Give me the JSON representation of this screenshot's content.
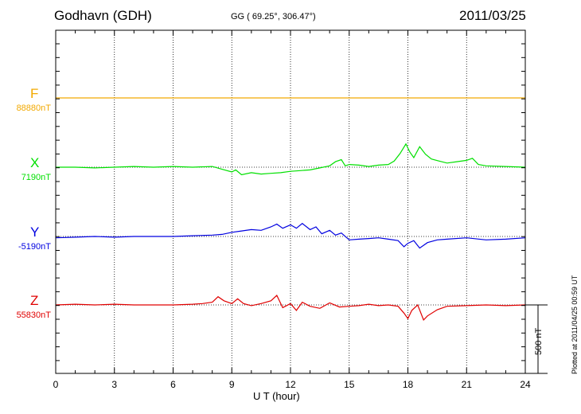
{
  "header": {
    "station": "Godhavn (GDH)",
    "coords": "GG ( 69.25°, 306.47°)",
    "date": "2011/03/25"
  },
  "plotted_note": "Plotted at 2011/04/25 00:59 UT",
  "scale_label": "500 nT",
  "chart_data": {
    "type": "line",
    "xlabel": "U T (hour)",
    "xlim": [
      0,
      24
    ],
    "xticks": [
      0,
      3,
      6,
      9,
      12,
      15,
      18,
      21,
      24
    ],
    "xtick_labels": [
      "0",
      "3",
      "6",
      "9",
      "12",
      "15",
      "18",
      "21",
      "24"
    ],
    "grid": true,
    "scale_bar_nT": 500,
    "series": [
      {
        "name": "F",
        "baseline_label": "88880nT",
        "color": "#f2a900",
        "x": [
          0,
          3,
          6,
          9,
          12,
          15,
          18,
          21,
          24
        ],
        "y": [
          0,
          0,
          0,
          0,
          0,
          0,
          0,
          0,
          0
        ]
      },
      {
        "name": "X",
        "baseline_label": "7190nT",
        "color": "#00e000",
        "x": [
          0,
          1,
          2,
          3,
          4,
          5,
          6,
          7,
          8,
          8.5,
          9,
          9.2,
          9.5,
          10,
          10.5,
          11,
          11.5,
          12,
          12.5,
          13,
          13.5,
          14,
          14.3,
          14.6,
          14.8,
          15,
          15.5,
          16,
          16.5,
          17,
          17.3,
          17.6,
          17.9,
          18.1,
          18.3,
          18.6,
          18.9,
          19.2,
          19.6,
          20,
          20.5,
          21,
          21.3,
          21.6,
          22,
          23,
          24
        ],
        "y": [
          0,
          0,
          -5,
          0,
          5,
          0,
          5,
          0,
          5,
          -15,
          -35,
          -20,
          -55,
          -40,
          -50,
          -45,
          -40,
          -30,
          -25,
          -20,
          -5,
          10,
          40,
          55,
          10,
          20,
          15,
          5,
          15,
          20,
          45,
          100,
          170,
          110,
          70,
          150,
          95,
          60,
          45,
          30,
          40,
          50,
          65,
          20,
          10,
          5,
          0
        ]
      },
      {
        "name": "Y",
        "baseline_label": "-5190nT",
        "color": "#0000e0",
        "x": [
          0,
          1,
          2,
          3,
          4,
          5,
          6,
          7,
          8,
          8.5,
          9,
          9.5,
          10,
          10.5,
          11,
          11.3,
          11.6,
          12,
          12.3,
          12.6,
          13,
          13.3,
          13.6,
          14,
          14.3,
          14.6,
          15,
          15.5,
          16,
          16.5,
          17,
          17.5,
          17.8,
          18,
          18.3,
          18.6,
          19,
          19.5,
          20,
          21,
          22,
          23,
          24
        ],
        "y": [
          -10,
          -5,
          0,
          -5,
          0,
          0,
          0,
          5,
          10,
          15,
          30,
          40,
          50,
          45,
          70,
          90,
          60,
          85,
          60,
          95,
          50,
          70,
          20,
          45,
          10,
          25,
          -25,
          -20,
          -15,
          -10,
          -20,
          -30,
          -75,
          -50,
          -30,
          -85,
          -45,
          -25,
          -20,
          -10,
          -25,
          -20,
          -10
        ]
      },
      {
        "name": "Z",
        "baseline_label": "55830nT",
        "color": "#e00000",
        "x": [
          0,
          1,
          2,
          3,
          4,
          5,
          6,
          7,
          7.5,
          8,
          8.3,
          8.6,
          9,
          9.3,
          9.6,
          10,
          10.5,
          11,
          11.3,
          11.6,
          12,
          12.3,
          12.6,
          13,
          13.5,
          14,
          14.5,
          15,
          15.5,
          16,
          16.5,
          17,
          17.5,
          17.8,
          18,
          18.2,
          18.5,
          18.8,
          19,
          19.5,
          20,
          21,
          22,
          23,
          24
        ],
        "y": [
          0,
          5,
          0,
          5,
          0,
          0,
          0,
          5,
          10,
          20,
          60,
          30,
          10,
          45,
          10,
          -5,
          10,
          30,
          70,
          -20,
          10,
          -40,
          20,
          -10,
          -25,
          15,
          -15,
          -10,
          -5,
          5,
          -5,
          0,
          -10,
          -60,
          -100,
          -40,
          0,
          -110,
          -80,
          -35,
          -10,
          -5,
          0,
          -5,
          0
        ]
      }
    ]
  }
}
